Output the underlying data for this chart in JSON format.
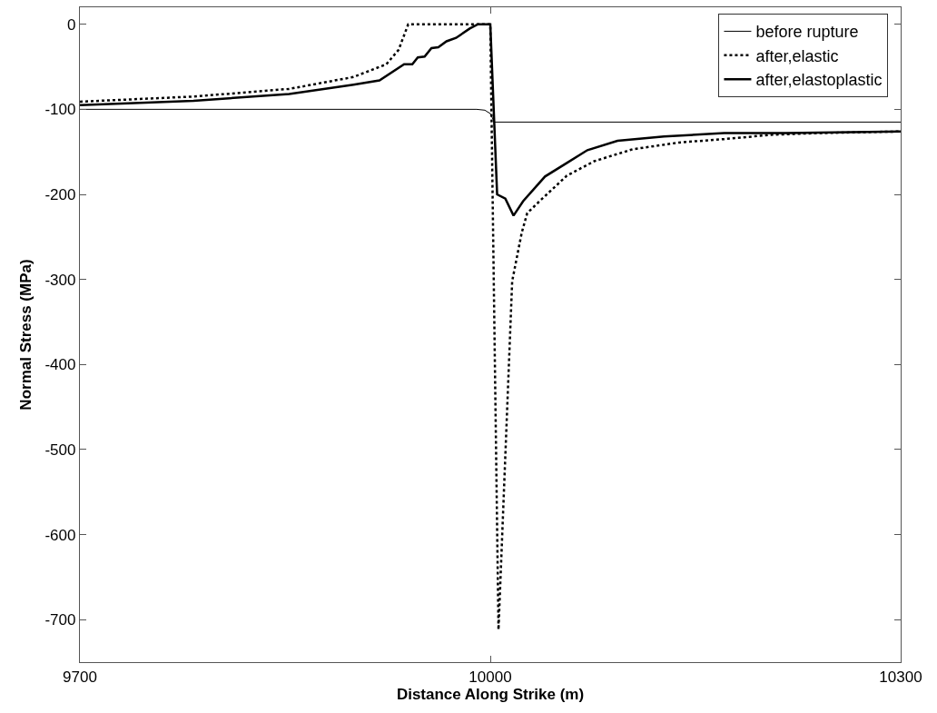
{
  "chart_data": {
    "type": "line",
    "xlabel": "Distance Along Strike (m)",
    "ylabel": "Normal Stress (MPa)",
    "xlim": [
      9700,
      10300
    ],
    "xticks": [
      9700,
      10000,
      10300
    ],
    "ylim": [
      -750,
      20
    ],
    "yticks": [
      0,
      -100,
      -200,
      -300,
      -400,
      -500,
      -600,
      -700
    ],
    "grid": false,
    "legend": "top right",
    "marker": "none",
    "series": [
      {
        "name": "before rupture",
        "color": "#000000",
        "line_style": "solid",
        "x": [
          9700,
          9990,
          9996,
          10000,
          10003,
          10300
        ],
        "values": [
          -100,
          -100,
          -101,
          -105,
          -115,
          -115
        ]
      },
      {
        "name": "after,elastic",
        "color": "#000000",
        "line_style": "dotted",
        "x": [
          9700,
          9783,
          9853,
          9900,
          9924,
          9933,
          9940,
          10000,
          10006,
          10016,
          10023,
          10027,
          10038,
          10056,
          10076,
          10104,
          10138,
          10171,
          10205,
          10238,
          10300
        ],
        "values": [
          -91,
          -85,
          -76,
          -62,
          -47,
          -30,
          0,
          0,
          -712,
          -302,
          -245,
          -222,
          -205,
          -178,
          -161,
          -147,
          -139,
          -135,
          -130,
          -128,
          -126
        ]
      },
      {
        "name": "after,elastoplastic",
        "color": "#000000",
        "line_style": "solid",
        "x": [
          9700,
          9783,
          9853,
          9900,
          9919,
          9937,
          9943,
          9947,
          9952,
          9957,
          9962,
          9968,
          9975,
          9985,
          9991,
          10000,
          10005,
          10011,
          10017,
          10024,
          10040,
          10056,
          10071,
          10093,
          10127,
          10171,
          10216,
          10300
        ],
        "values": [
          -95,
          -90,
          -82,
          -71,
          -66,
          -47,
          -47,
          -39,
          -38,
          -28,
          -27,
          -20,
          -16,
          -5,
          0,
          0,
          -200,
          -205,
          -225,
          -208,
          -179,
          -163,
          -148,
          -137,
          -132,
          -128,
          -128,
          -126
        ]
      }
    ]
  }
}
